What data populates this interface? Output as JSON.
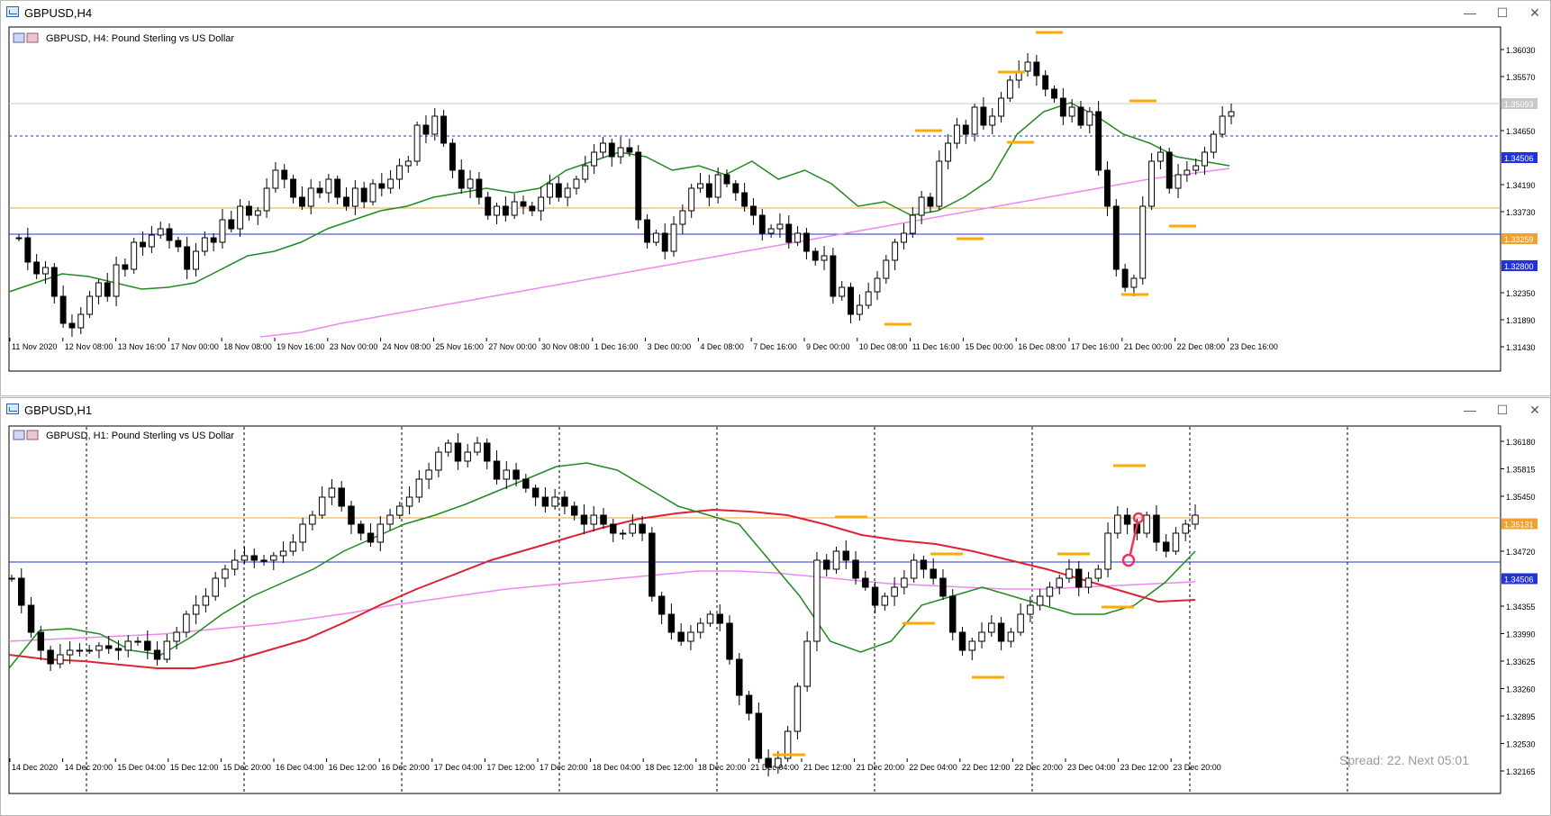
{
  "windows": [
    {
      "title": "GBPUSD,H4",
      "chart_title": "GBPUSD, H4:  Pound Sterling vs US Dollar",
      "controls": {
        "minimize": "—",
        "maximize": "☐",
        "close": "✕"
      },
      "price_axis": [
        "1.36030",
        "1.35570",
        "1.35093",
        "1.34650",
        "1.34506",
        "1.34190",
        "1.33730",
        "1.33259",
        "1.32800",
        "1.32350",
        "1.31890",
        "1.31430"
      ],
      "price_axis_highlighted": {
        "1.35093": "#c8c8c8",
        "1.34506": "#2233dd",
        "1.33259": "#f0a030",
        "1.32800": "#2233dd"
      },
      "time_axis": [
        "11 Nov 2020",
        "12 Nov 08:00",
        "13 Nov 16:00",
        "17 Nov 00:00",
        "18 Nov 08:00",
        "19 Nov 16:00",
        "23 Nov 00:00",
        "24 Nov 08:00",
        "25 Nov 16:00",
        "27 Nov 00:00",
        "30 Nov 08:00",
        "1 Dec 16:00",
        "3 Dec 00:00",
        "4 Dec 08:00",
        "7 Dec 16:00",
        "9 Dec 00:00",
        "10 Dec 08:00",
        "11 Dec 16:00",
        "15 Dec 00:00",
        "16 Dec 08:00",
        "17 Dec 16:00",
        "21 Dec 00:00",
        "22 Dec 08:00",
        "23 Dec 16:00"
      ]
    },
    {
      "title": "GBPUSD,H1",
      "chart_title": "GBPUSD, H1:  Pound Sterling vs US Dollar",
      "controls": {
        "minimize": "—",
        "maximize": "☐",
        "close": "✕"
      },
      "price_axis": [
        "1.36180",
        "1.35815",
        "1.35450",
        "1.35131",
        "1.34720",
        "1.34506",
        "1.34355",
        "1.33990",
        "1.33625",
        "1.33260",
        "1.32895",
        "1.32530",
        "1.32165"
      ],
      "price_axis_highlighted": {
        "1.35131": "#f0a030",
        "1.34506": "#2233dd"
      },
      "time_axis": [
        "14 Dec 2020",
        "14 Dec 20:00",
        "15 Dec 04:00",
        "15 Dec 12:00",
        "15 Dec 20:00",
        "16 Dec 04:00",
        "16 Dec 12:00",
        "16 Dec 20:00",
        "17 Dec 04:00",
        "17 Dec 12:00",
        "17 Dec 20:00",
        "18 Dec 04:00",
        "18 Dec 12:00",
        "18 Dec 20:00",
        "21 Dec 04:00",
        "21 Dec 12:00",
        "21 Dec 20:00",
        "22 Dec 04:00",
        "22 Dec 12:00",
        "22 Dec 20:00",
        "23 Dec 04:00",
        "23 Dec 12:00",
        "23 Dec 20:00"
      ],
      "status": "Spread: 22.  Next 05:01"
    }
  ],
  "colors": {
    "bull": "#ffffff",
    "bear": "#000000",
    "ma_fast": "#228822",
    "ma_slow": "#ee88ee",
    "ma_mid": "#dd2233",
    "hline_orange": "#f0a030",
    "hline_blue": "#2233dd",
    "marker": "#ffaa00",
    "arrow": "#ee3355"
  },
  "icons": {
    "title": "chart-window-icon",
    "chart_corner": "chart-type-icon"
  }
}
